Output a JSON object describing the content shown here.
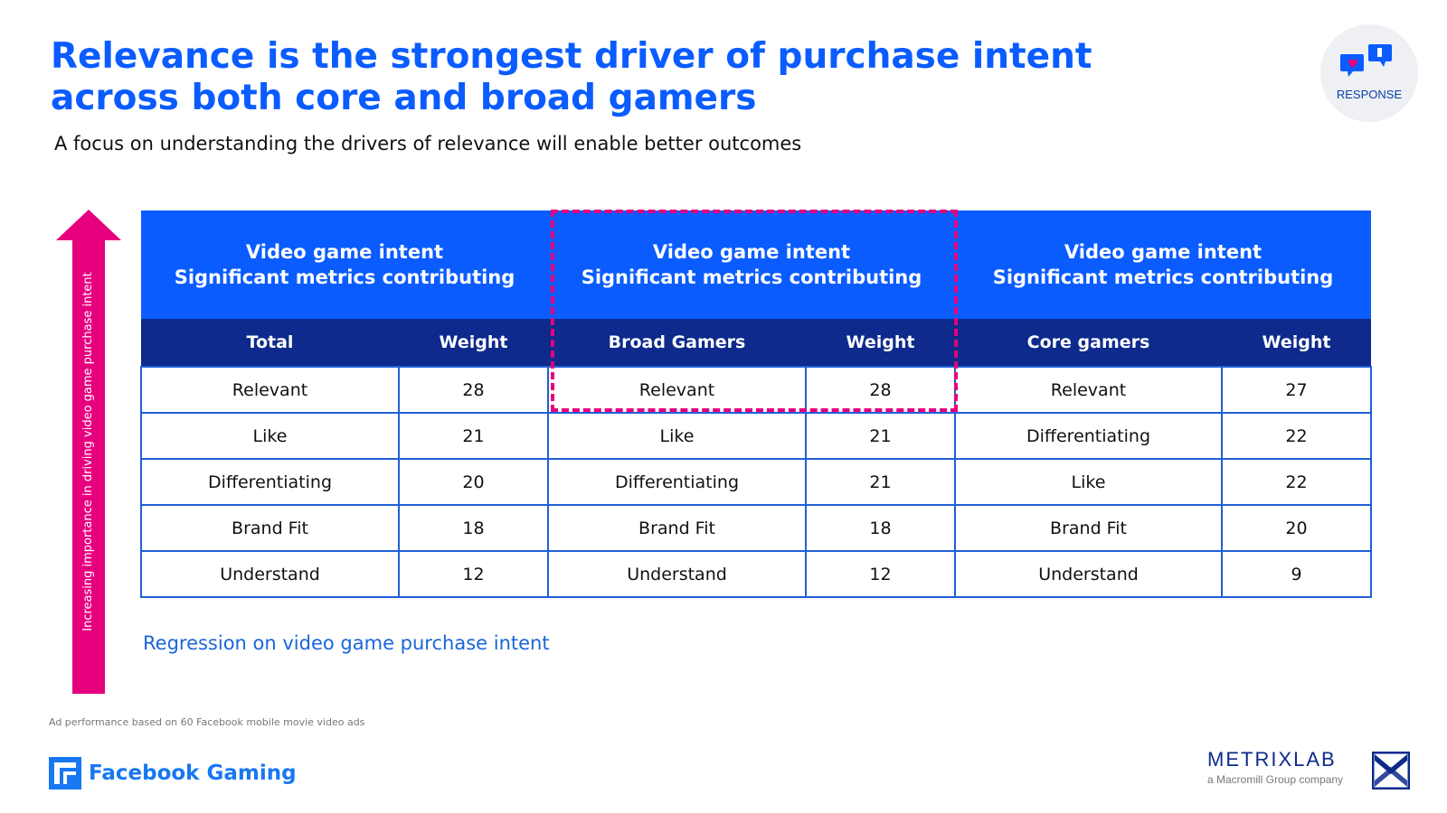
{
  "header": {
    "title_line1": "Relevance is the strongest driver of purchase intent",
    "title_line2": "across both core and broad gamers",
    "subtitle": "A focus on understanding the drivers of relevance will enable better outcomes",
    "badge_label": "RESPONSE"
  },
  "arrow_label": "Increasing importance in driving video game purchase intent",
  "chart_data": {
    "type": "table",
    "groups": [
      {
        "header_line1": "Video game intent",
        "header_line2": "Significant metrics contributing",
        "col_label": "Total",
        "weight_label": "Weight",
        "rows": [
          {
            "metric": "Relevant",
            "weight": 28
          },
          {
            "metric": "Like",
            "weight": 21
          },
          {
            "metric": "Differentiating",
            "weight": 20
          },
          {
            "metric": "Brand Fit",
            "weight": 18
          },
          {
            "metric": "Understand",
            "weight": 12
          }
        ]
      },
      {
        "header_line1": "Video game intent",
        "header_line2": "Significant metrics contributing",
        "col_label": "Broad Gamers",
        "weight_label": "Weight",
        "rows": [
          {
            "metric": "Relevant",
            "weight": 28
          },
          {
            "metric": "Like",
            "weight": 21
          },
          {
            "metric": "Differentiating",
            "weight": 21
          },
          {
            "metric": "Brand Fit",
            "weight": 18
          },
          {
            "metric": "Understand",
            "weight": 12
          }
        ]
      },
      {
        "header_line1": "Video game intent",
        "header_line2": "Significant metrics contributing",
        "col_label": "Core gamers",
        "weight_label": "Weight",
        "rows": [
          {
            "metric": "Relevant",
            "weight": 27
          },
          {
            "metric": "Differentiating",
            "weight": 22
          },
          {
            "metric": "Like",
            "weight": 22
          },
          {
            "metric": "Brand Fit",
            "weight": 20
          },
          {
            "metric": "Understand",
            "weight": 9
          }
        ]
      }
    ],
    "highlighted_group": "Broad Gamers"
  },
  "regression_label": "Regression on video game purchase intent",
  "footnote": "Ad performance based on 60 Facebook mobile movie video ads",
  "brand": {
    "facebook_gaming": "Facebook Gaming",
    "metrixlab": "METRIXLAB",
    "metrixlab_sub": "a Macromill Group company"
  },
  "colors": {
    "accent_blue": "#0a5cff",
    "navy": "#0d2a8c",
    "magenta": "#e6007e"
  }
}
